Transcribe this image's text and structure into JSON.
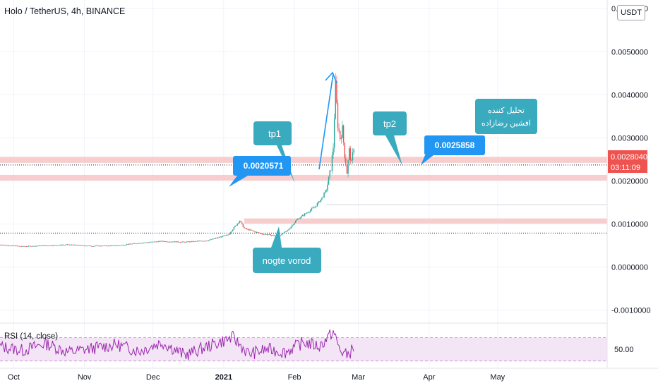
{
  "header": {
    "title": "Holo / TetherUS, 4h, BINANCE",
    "currency": "USDT"
  },
  "colors": {
    "candle_up": "#26a69a",
    "candle_down": "#ef5350",
    "zone": "#f7c4c4",
    "callout": "#3aaabf",
    "price_label": "#2196f3",
    "arrow": "#2196f3",
    "current_price_bg": "#ef5350",
    "rsi_line": "#9c27b0",
    "rsi_band": "#f3e5f5"
  },
  "chart_data": [
    {
      "type": "line",
      "title": "Holo / TetherUS, 4h, BINANCE",
      "xlabel": "",
      "ylabel": "",
      "ylim": [
        -0.00125,
        0.0062
      ],
      "y_ticks": [
        "0.0060000",
        "0.0050000",
        "0.0040000",
        "0.0030000",
        "0.0020000",
        "0.0010000",
        "0.0000000",
        "-0.0010000"
      ],
      "y_tick_values": [
        0.006,
        0.005,
        0.004,
        0.003,
        0.002,
        0.001,
        0.0,
        -0.001
      ],
      "x_ticks": [
        "Oct",
        "Nov",
        "Dec",
        "2021",
        "Feb",
        "Mar",
        "Apr",
        "May"
      ],
      "x_tick_dates": [
        "2020-10-01",
        "2020-11-01",
        "2020-12-01",
        "2021-01-01",
        "2021-02-01",
        "2021-03-01",
        "2021-04-01",
        "2021-05-01"
      ],
      "xlim": [
        "2020-09-25",
        "2021-06-18"
      ],
      "series": [
        {
          "x": [
            "2020-09-25",
            "2020-10-05",
            "2020-10-15",
            "2020-10-25",
            "2020-11-05",
            "2020-11-15",
            "2020-11-25",
            "2020-12-05",
            "2020-12-15",
            "2020-12-25",
            "2021-01-03",
            "2021-01-06",
            "2021-01-08",
            "2021-01-10",
            "2021-01-13",
            "2021-01-17",
            "2021-01-21",
            "2021-01-25",
            "2021-01-29",
            "2021-02-02",
            "2021-02-06",
            "2021-02-10",
            "2021-02-13",
            "2021-02-15",
            "2021-02-17",
            "2021-02-18",
            "2021-02-19",
            "2021-02-20",
            "2021-02-21",
            "2021-02-22",
            "2021-02-23",
            "2021-02-24",
            "2021-02-25",
            "2021-02-26",
            "2021-02-27"
          ],
          "y": [
            0.00052,
            0.00048,
            0.0005,
            0.00052,
            0.00049,
            0.0005,
            0.00056,
            0.0006,
            0.00058,
            0.00062,
            0.00075,
            0.00095,
            0.00108,
            0.0009,
            0.00085,
            0.00078,
            0.00075,
            0.00072,
            0.00085,
            0.0011,
            0.00125,
            0.0014,
            0.0016,
            0.0018,
            0.0023,
            0.0028,
            0.0042,
            0.0033,
            0.003,
            0.0032,
            0.0026,
            0.0022,
            0.0027,
            0.0024,
            0.0028
          ]
        }
      ],
      "zones": [
        {
          "label": "",
          "low": 0.00242,
          "high": 0.00256,
          "until": "2021-06-18"
        },
        {
          "label": "",
          "low": 0.00201,
          "high": 0.00214,
          "until": "2021-06-18"
        },
        {
          "label": "",
          "low": 0.00101,
          "high": 0.00113,
          "from": "2021-01-10",
          "until": "2021-06-18"
        }
      ],
      "reference_lines": [
        {
          "value": 0.00237,
          "style": "dotted",
          "color": "#131722"
        },
        {
          "value": 0.00145,
          "style": "solid",
          "color": "#d1d4dc",
          "from": "2021-02-15"
        },
        {
          "value": 0.00079,
          "style": "dotted",
          "color": "#131722"
        }
      ],
      "current_price": "0.0028040",
      "countdown": "03:11:09",
      "annotations": [
        {
          "text": "tp1",
          "kind": "callout"
        },
        {
          "text": "tp2",
          "kind": "callout"
        },
        {
          "text": "nogte vorod",
          "kind": "callout"
        },
        {
          "text": "تحلیل کننده",
          "kind": "callout"
        },
        {
          "text": "افشین رضازاده",
          "kind": "callout"
        },
        {
          "text": "0.0020571",
          "kind": "price_label"
        },
        {
          "text": "0.0025858",
          "kind": "price_label"
        }
      ]
    },
    {
      "type": "line",
      "title": "RSI (14, close)",
      "ylim": [
        20,
        90
      ],
      "band": [
        30,
        70
      ],
      "y_ticks": [
        "50.00"
      ],
      "y_tick_values": [
        50
      ],
      "series": [
        {
          "name": "RSI",
          "x": [
            "2020-09-25",
            "2020-10-05",
            "2020-10-15",
            "2020-10-25",
            "2020-11-05",
            "2020-11-15",
            "2020-11-25",
            "2020-12-05",
            "2020-12-15",
            "2020-12-25",
            "2021-01-05",
            "2021-01-12",
            "2021-01-20",
            "2021-01-28",
            "2021-02-05",
            "2021-02-12",
            "2021-02-18",
            "2021-02-21",
            "2021-02-24",
            "2021-02-27"
          ],
          "y": [
            55,
            48,
            60,
            45,
            52,
            58,
            47,
            62,
            40,
            55,
            70,
            42,
            50,
            45,
            62,
            55,
            80,
            48,
            40,
            52
          ]
        }
      ]
    }
  ]
}
